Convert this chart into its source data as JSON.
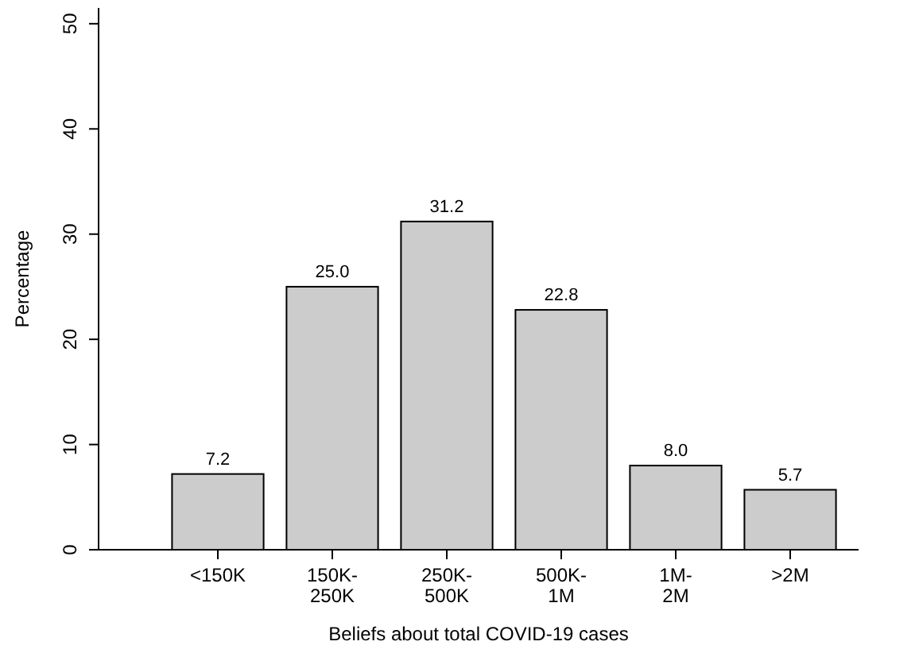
{
  "chart_data": {
    "type": "bar",
    "xlabel": "Beliefs about total COVID-19 cases",
    "ylabel": "Percentage",
    "categories": [
      "<150K",
      "150K-250K",
      "250K-500K",
      "500K-1M",
      "1M-2M",
      ">2M"
    ],
    "values": [
      7.2,
      25.0,
      31.2,
      22.8,
      8.0,
      5.7
    ],
    "value_labels": [
      "7.2",
      "25.0",
      "31.2",
      "22.8",
      "8.0",
      "5.7"
    ],
    "color": "#cccccc",
    "ylim": [
      0,
      51.5
    ],
    "yticks": [
      0,
      10,
      20,
      30,
      40,
      50
    ],
    "grid": false
  }
}
